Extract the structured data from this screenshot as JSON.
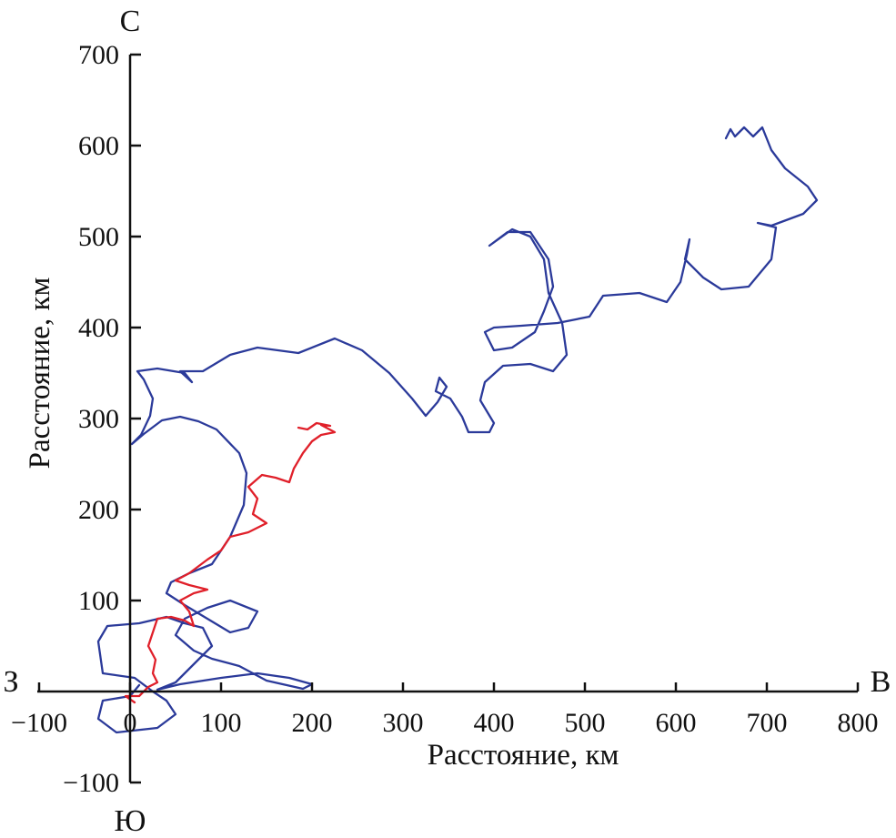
{
  "chart_data": {
    "type": "line",
    "xlabel": "Расстояние, км",
    "ylabel": "Расстояние, км",
    "xlim": [
      -100,
      800
    ],
    "ylim": [
      -100,
      700
    ],
    "x_ticks": [
      -100,
      0,
      100,
      200,
      300,
      400,
      500,
      600,
      700,
      800
    ],
    "y_ticks": [
      -100,
      100,
      200,
      300,
      400,
      500,
      600,
      700
    ],
    "x_tick_labels": [
      "−100",
      "0",
      "100",
      "200",
      "300",
      "400",
      "500",
      "600",
      "700",
      "800"
    ],
    "y_tick_labels": [
      "−100",
      "100",
      "200",
      "300",
      "400",
      "500",
      "600",
      "700"
    ],
    "compass": {
      "north": "С",
      "south": "Ю",
      "west": "З",
      "east": "В"
    },
    "grid": false,
    "series": [
      {
        "color": "#2b3a9a",
        "points": [
          [
            10,
            7
          ],
          [
            0,
            -5
          ],
          [
            -30,
            -10
          ],
          [
            -35,
            -30
          ],
          [
            -15,
            -45
          ],
          [
            30,
            -40
          ],
          [
            50,
            -25
          ],
          [
            40,
            -10
          ],
          [
            25,
            0
          ],
          [
            5,
            15
          ],
          [
            -30,
            20
          ],
          [
            -35,
            55
          ],
          [
            -25,
            72
          ],
          [
            10,
            75
          ],
          [
            40,
            82
          ],
          [
            60,
            75
          ],
          [
            80,
            70
          ],
          [
            90,
            50
          ],
          [
            70,
            30
          ],
          [
            50,
            10
          ],
          [
            30,
            2
          ],
          [
            55,
            8
          ],
          [
            100,
            15
          ],
          [
            140,
            20
          ],
          [
            175,
            15
          ],
          [
            200,
            8
          ],
          [
            190,
            3
          ],
          [
            150,
            12
          ],
          [
            120,
            28
          ],
          [
            90,
            36
          ],
          [
            70,
            45
          ],
          [
            50,
            62
          ],
          [
            60,
            80
          ],
          [
            85,
            92
          ],
          [
            110,
            100
          ],
          [
            140,
            88
          ],
          [
            130,
            70
          ],
          [
            110,
            65
          ],
          [
            85,
            80
          ],
          [
            60,
            95
          ],
          [
            40,
            108
          ],
          [
            45,
            120
          ],
          [
            65,
            130
          ],
          [
            90,
            140
          ],
          [
            110,
            170
          ],
          [
            125,
            205
          ],
          [
            128,
            240
          ],
          [
            120,
            262
          ],
          [
            95,
            288
          ],
          [
            75,
            297
          ],
          [
            55,
            302
          ],
          [
            35,
            298
          ],
          [
            15,
            283
          ],
          [
            2,
            272
          ],
          [
            12,
            282
          ],
          [
            22,
            303
          ],
          [
            25,
            322
          ],
          [
            15,
            343
          ],
          [
            8,
            352
          ],
          [
            30,
            355
          ],
          [
            48,
            352
          ],
          [
            60,
            350
          ],
          [
            68,
            340
          ],
          [
            55,
            352
          ],
          [
            80,
            352
          ],
          [
            110,
            370
          ],
          [
            140,
            378
          ],
          [
            185,
            372
          ],
          [
            225,
            388
          ],
          [
            255,
            375
          ],
          [
            285,
            350
          ],
          [
            310,
            322
          ],
          [
            325,
            303
          ],
          [
            338,
            318
          ],
          [
            348,
            335
          ],
          [
            340,
            345
          ],
          [
            336,
            330
          ],
          [
            352,
            322
          ],
          [
            365,
            302
          ],
          [
            372,
            285
          ],
          [
            395,
            285
          ],
          [
            400,
            295
          ],
          [
            385,
            320
          ],
          [
            390,
            340
          ],
          [
            410,
            358
          ],
          [
            440,
            360
          ],
          [
            465,
            352
          ],
          [
            480,
            370
          ],
          [
            475,
            405
          ],
          [
            460,
            438
          ],
          [
            455,
            475
          ],
          [
            440,
            500
          ],
          [
            420,
            508
          ],
          [
            395,
            490
          ],
          [
            415,
            505
          ],
          [
            440,
            505
          ],
          [
            460,
            475
          ],
          [
            465,
            445
          ],
          [
            455,
            418
          ],
          [
            445,
            395
          ],
          [
            420,
            378
          ],
          [
            400,
            375
          ],
          [
            390,
            395
          ],
          [
            400,
            400
          ],
          [
            430,
            402
          ],
          [
            470,
            405
          ],
          [
            505,
            412
          ],
          [
            520,
            435
          ],
          [
            560,
            438
          ],
          [
            590,
            428
          ],
          [
            605,
            450
          ],
          [
            612,
            480
          ],
          [
            615,
            497
          ],
          [
            610,
            475
          ],
          [
            630,
            455
          ],
          [
            650,
            442
          ],
          [
            680,
            445
          ],
          [
            705,
            475
          ],
          [
            710,
            510
          ],
          [
            690,
            515
          ],
          [
            705,
            512
          ],
          [
            740,
            525
          ],
          [
            755,
            540
          ],
          [
            745,
            555
          ],
          [
            720,
            575
          ],
          [
            705,
            595
          ],
          [
            695,
            620
          ],
          [
            685,
            610
          ],
          [
            675,
            620
          ],
          [
            665,
            610
          ],
          [
            660,
            618
          ],
          [
            655,
            608
          ]
        ]
      },
      {
        "color": "#e0202a",
        "points": [
          [
            5,
            -12
          ],
          [
            -5,
            -5
          ],
          [
            10,
            -5
          ],
          [
            20,
            5
          ],
          [
            30,
            10
          ],
          [
            25,
            20
          ],
          [
            28,
            35
          ],
          [
            20,
            50
          ],
          [
            25,
            65
          ],
          [
            30,
            80
          ],
          [
            45,
            82
          ],
          [
            60,
            78
          ],
          [
            70,
            72
          ],
          [
            65,
            88
          ],
          [
            55,
            100
          ],
          [
            70,
            108
          ],
          [
            85,
            112
          ],
          [
            65,
            117
          ],
          [
            50,
            122
          ],
          [
            65,
            130
          ],
          [
            85,
            145
          ],
          [
            100,
            155
          ],
          [
            110,
            170
          ],
          [
            130,
            175
          ],
          [
            150,
            185
          ],
          [
            135,
            195
          ],
          [
            140,
            212
          ],
          [
            130,
            225
          ],
          [
            145,
            238
          ],
          [
            160,
            235
          ],
          [
            175,
            230
          ],
          [
            180,
            245
          ],
          [
            190,
            262
          ],
          [
            200,
            275
          ],
          [
            210,
            282
          ],
          [
            225,
            285
          ],
          [
            210,
            293
          ],
          [
            220,
            292
          ],
          [
            205,
            295
          ],
          [
            195,
            288
          ],
          [
            185,
            290
          ]
        ]
      }
    ]
  }
}
